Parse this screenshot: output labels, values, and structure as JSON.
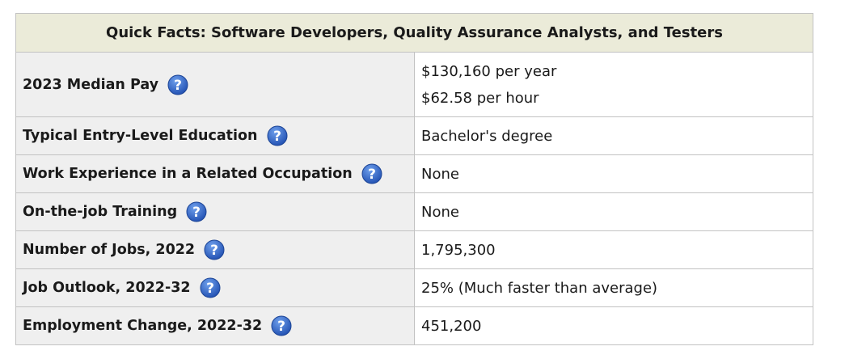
{
  "table": {
    "title": "Quick Facts: Software Developers, Quality Assurance Analysts, and Testers",
    "rows": [
      {
        "label": "2023 Median Pay",
        "values": [
          "$130,160 per year",
          "$62.58 per hour"
        ]
      },
      {
        "label": "Typical Entry-Level Education",
        "values": [
          "Bachelor's degree"
        ]
      },
      {
        "label": "Work Experience in a Related Occupation",
        "values": [
          "None"
        ]
      },
      {
        "label": "On-the-job Training",
        "values": [
          "None"
        ]
      },
      {
        "label": "Number of Jobs, 2022",
        "values": [
          "1,795,300"
        ]
      },
      {
        "label": "Job Outlook, 2022-32",
        "values": [
          "25% (Much faster than average)"
        ]
      },
      {
        "label": "Employment Change, 2022-32",
        "values": [
          "451,200"
        ]
      }
    ]
  },
  "icons": {
    "help": "question-mark-icon"
  },
  "colors": {
    "header_bg": "#ebebd9",
    "label_bg": "#efefef",
    "help_icon": "#2f66c4"
  }
}
